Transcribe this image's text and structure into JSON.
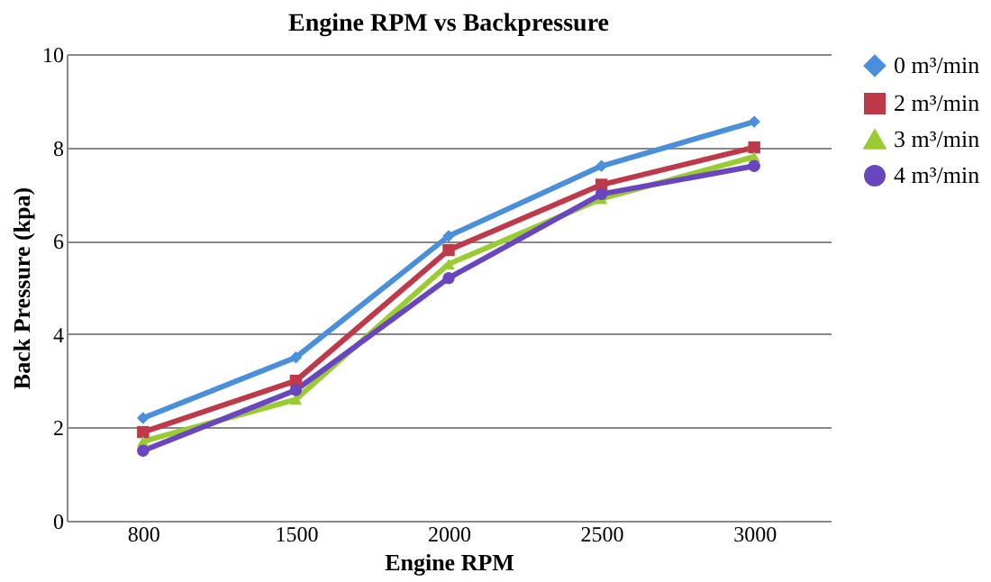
{
  "chart_data": {
    "type": "line",
    "title": "Engine RPM vs Backpressure",
    "xlabel": "Engine RPM",
    "ylabel": "Back Pressure (kpa)",
    "categories": [
      "800",
      "1500",
      "2000",
      "2500",
      "3000"
    ],
    "series": [
      {
        "name": "0 m³/min",
        "color": "#4a8fdc",
        "marker": "diamond",
        "values": [
          2.2,
          3.5,
          6.1,
          7.6,
          8.55
        ]
      },
      {
        "name": "2 m³/min",
        "color": "#be3a4a",
        "marker": "square",
        "values": [
          1.9,
          3.0,
          5.8,
          7.2,
          8.0
        ]
      },
      {
        "name": "3 m³/min",
        "color": "#99cc33",
        "marker": "triangle",
        "values": [
          1.7,
          2.6,
          5.5,
          6.9,
          7.8
        ]
      },
      {
        "name": "4 m³/min",
        "color": "#6a45c0",
        "marker": "circle",
        "values": [
          1.5,
          2.8,
          5.2,
          7.0,
          7.6
        ]
      }
    ],
    "ylim": [
      0,
      10
    ],
    "yticks": [
      0,
      2,
      4,
      6,
      8,
      10
    ],
    "grid": "y",
    "legend": "right",
    "line_style": "solid"
  }
}
